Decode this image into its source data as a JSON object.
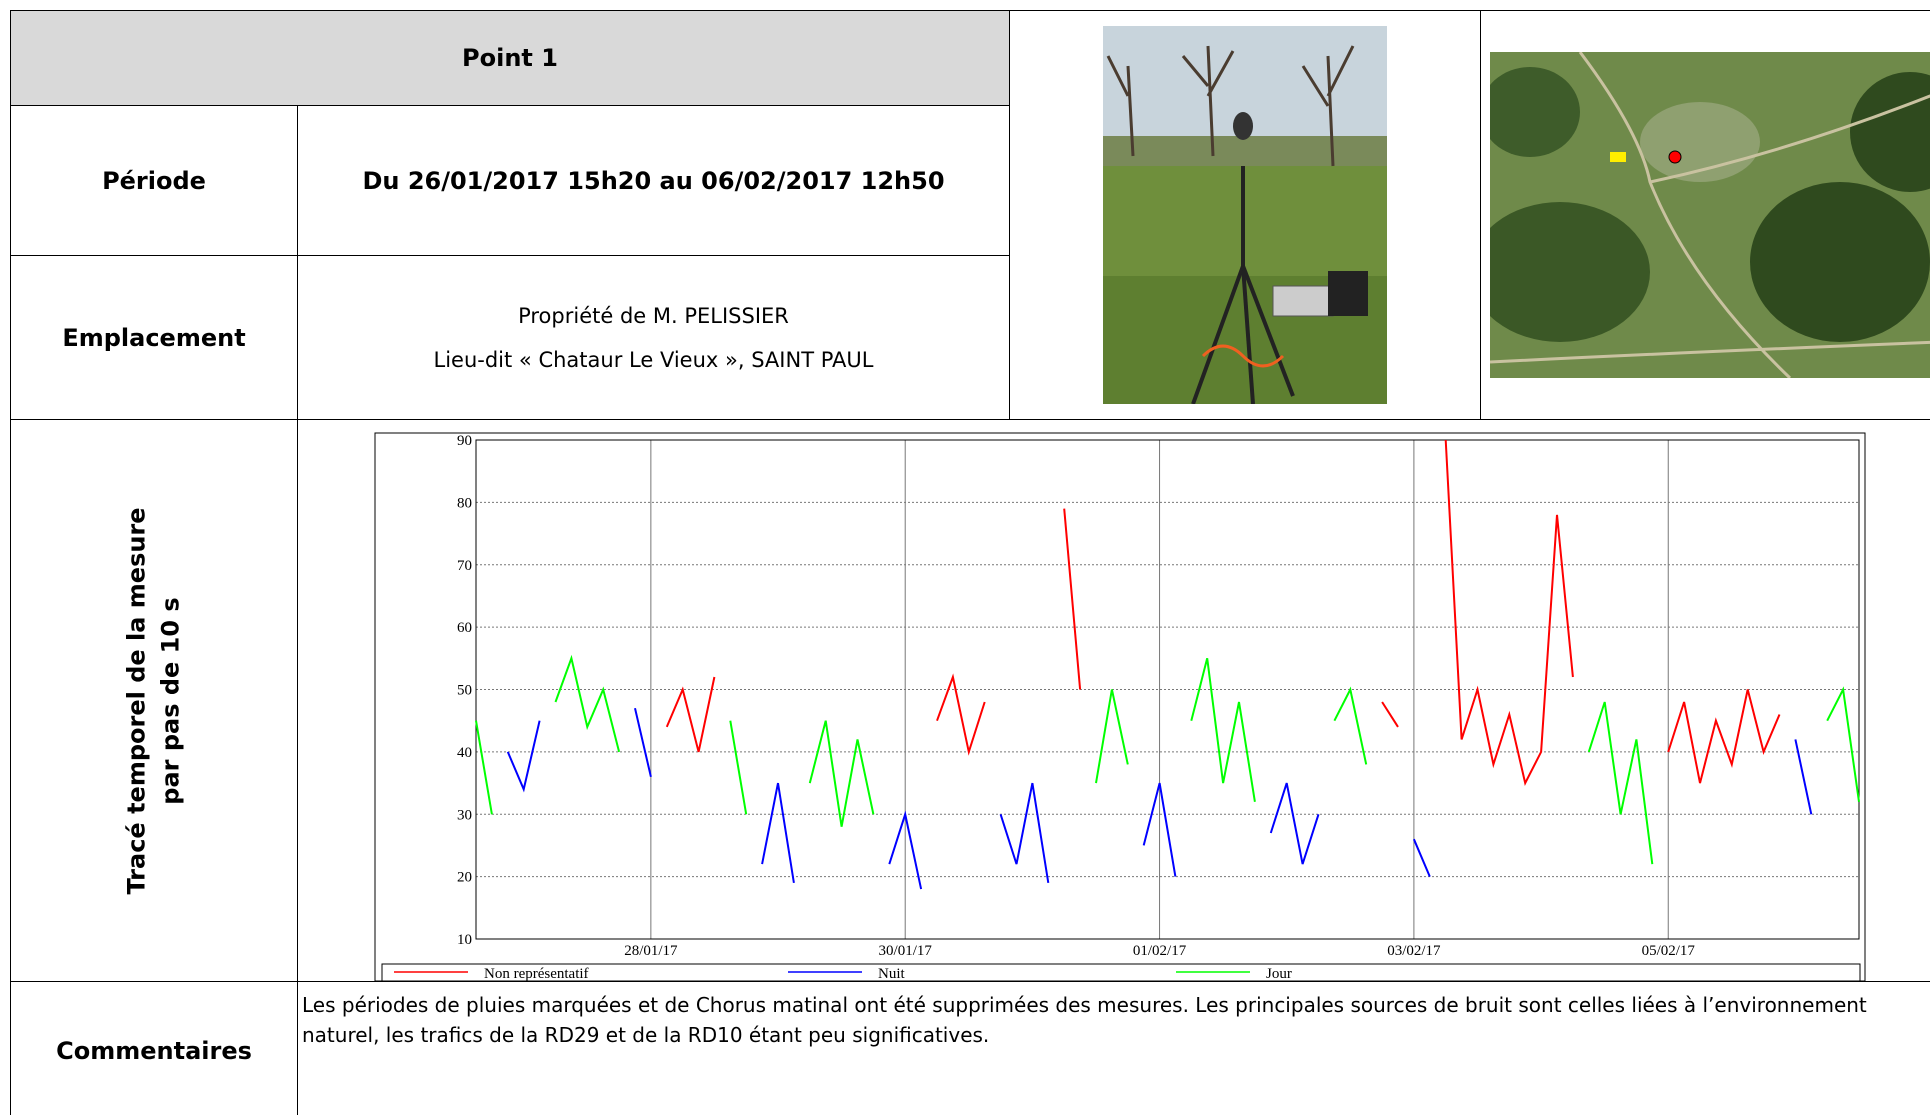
{
  "header": {
    "title": "Point 1"
  },
  "rows": {
    "period": {
      "label": "Période",
      "value": "Du 26/01/2017 15h20 au 06/02/2017 12h50"
    },
    "location": {
      "label": "Emplacement",
      "lines": [
        "Propriété de M. PELISSIER",
        "Lieu-dit « Chataur Le Vieux », SAINT PAUL"
      ]
    },
    "trace": {
      "label": [
        "Tracé temporel de la mesure",
        "par pas de 10 s"
      ]
    },
    "comments": {
      "label": "Commentaires",
      "text": "Les périodes de pluies marquées et de Chorus matinal ont été supprimées des mesures. Les principales sources de bruit sont celles liées à l’environnement naturel, les trafics de la RD29 et de la RD10 étant peu significatives."
    }
  },
  "chart_data": {
    "type": "line",
    "categories": [
      null,
      null,
      null,
      null,
      null,
      null,
      null,
      null,
      null,
      null,
      null,
      "28/01/17",
      null,
      null,
      null,
      null,
      null,
      null,
      null,
      null,
      null,
      null,
      null,
      null,
      null,
      null,
      null,
      "30/01/17",
      null,
      null,
      null,
      null,
      null,
      null,
      null,
      null,
      null,
      null,
      null,
      null,
      null,
      null,
      null,
      "01/02/17",
      null,
      null,
      null,
      null,
      null,
      null,
      null,
      null,
      null,
      null,
      null,
      null,
      null,
      null,
      null,
      "03/02/17",
      null,
      null,
      null,
      null,
      null,
      null,
      null,
      null,
      null,
      null,
      null,
      null,
      null,
      null,
      null,
      "05/02/17",
      null,
      null,
      null,
      null,
      null,
      null,
      null,
      null,
      null,
      null,
      null,
      null
    ],
    "ylim": [
      10,
      90
    ],
    "yticks": [
      10,
      20,
      30,
      40,
      50,
      60,
      70,
      80,
      90
    ],
    "grid": true,
    "series": [
      {
        "name": "Non représentatif",
        "color": "#ff0000",
        "values": [
          null,
          null,
          null,
          null,
          null,
          null,
          null,
          null,
          null,
          null,
          null,
          null,
          44,
          50,
          40,
          52,
          null,
          null,
          null,
          null,
          null,
          null,
          null,
          null,
          null,
          null,
          null,
          null,
          null,
          45,
          52,
          40,
          48,
          null,
          null,
          null,
          null,
          79,
          50,
          null,
          null,
          null,
          null,
          null,
          null,
          null,
          null,
          null,
          null,
          null,
          null,
          null,
          null,
          null,
          null,
          null,
          null,
          48,
          44,
          null,
          null,
          90,
          42,
          50,
          38,
          46,
          35,
          40,
          78,
          52,
          null,
          null,
          null,
          null,
          null,
          40,
          48,
          35,
          45,
          38,
          50,
          40,
          46,
          null,
          null,
          null,
          null,
          null
        ]
      },
      {
        "name": "Nuit",
        "color": "#0000ff",
        "values": [
          null,
          null,
          40,
          34,
          45,
          null,
          null,
          null,
          null,
          null,
          47,
          36,
          null,
          null,
          null,
          null,
          null,
          null,
          22,
          35,
          19,
          null,
          null,
          null,
          null,
          null,
          22,
          30,
          18,
          null,
          null,
          null,
          null,
          30,
          22,
          35,
          19,
          null,
          null,
          null,
          null,
          null,
          25,
          35,
          20,
          null,
          null,
          null,
          null,
          null,
          27,
          35,
          22,
          30,
          null,
          null,
          null,
          null,
          null,
          26,
          20,
          null,
          null,
          null,
          null,
          null,
          null,
          null,
          null,
          null,
          null,
          null,
          null,
          null,
          null,
          null,
          null,
          null,
          null,
          null,
          null,
          null,
          null,
          42,
          30,
          null,
          null,
          null
        ]
      },
      {
        "name": "Jour",
        "color": "#00ff00",
        "values": [
          45,
          30,
          null,
          null,
          null,
          48,
          55,
          44,
          50,
          40,
          null,
          null,
          null,
          null,
          null,
          null,
          45,
          30,
          null,
          null,
          null,
          35,
          45,
          28,
          42,
          30,
          null,
          null,
          null,
          null,
          null,
          null,
          null,
          null,
          null,
          null,
          null,
          null,
          null,
          35,
          50,
          38,
          null,
          null,
          null,
          45,
          55,
          35,
          48,
          32,
          null,
          null,
          null,
          null,
          45,
          50,
          38,
          null,
          null,
          null,
          null,
          null,
          null,
          null,
          null,
          null,
          null,
          null,
          null,
          null,
          40,
          48,
          30,
          42,
          22,
          null,
          null,
          null,
          null,
          null,
          null,
          null,
          null,
          null,
          null,
          45,
          50,
          32
        ]
      }
    ]
  }
}
